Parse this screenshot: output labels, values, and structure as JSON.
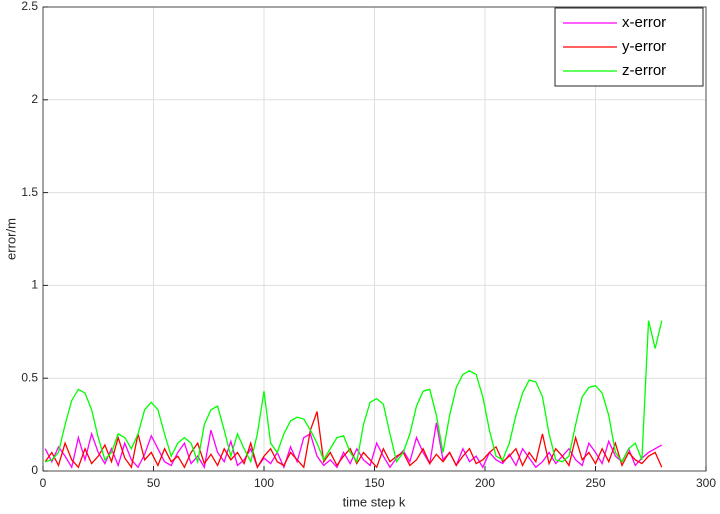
{
  "chart_data": {
    "type": "line",
    "x_label": "time step k",
    "y_label": "error/m",
    "x": [
      1,
      4,
      7,
      10,
      13,
      16,
      19,
      22,
      25,
      28,
      31,
      34,
      37,
      40,
      43,
      46,
      49,
      52,
      55,
      58,
      61,
      64,
      67,
      70,
      73,
      76,
      79,
      82,
      85,
      88,
      91,
      94,
      97,
      100,
      103,
      106,
      109,
      112,
      115,
      118,
      121,
      124,
      127,
      130,
      133,
      136,
      139,
      142,
      145,
      148,
      151,
      154,
      157,
      160,
      163,
      166,
      169,
      172,
      175,
      178,
      181,
      184,
      187,
      190,
      193,
      196,
      199,
      202,
      205,
      208,
      211,
      214,
      217,
      220,
      223,
      226,
      229,
      232,
      235,
      238,
      241,
      244,
      247,
      250,
      253,
      256,
      259,
      262,
      265,
      268,
      271,
      274,
      277,
      280
    ],
    "series": [
      {
        "name": "x-error",
        "color": "#ff00ff",
        "values": [
          0.12,
          0.05,
          0.13,
          0.08,
          0.02,
          0.18,
          0.06,
          0.2,
          0.1,
          0.04,
          0.12,
          0.03,
          0.15,
          0.06,
          0.02,
          0.09,
          0.19,
          0.12,
          0.05,
          0.03,
          0.1,
          0.15,
          0.04,
          0.08,
          0.02,
          0.22,
          0.1,
          0.05,
          0.16,
          0.03,
          0.06,
          0.12,
          0.02,
          0.07,
          0.04,
          0.1,
          0.02,
          0.13,
          0.05,
          0.18,
          0.2,
          0.08,
          0.03,
          0.06,
          0.02,
          0.1,
          0.04,
          0.12,
          0.06,
          0.03,
          0.15,
          0.08,
          0.02,
          0.07,
          0.11,
          0.05,
          0.18,
          0.1,
          0.04,
          0.26,
          0.06,
          0.1,
          0.03,
          0.12,
          0.05,
          0.08,
          0.02,
          0.1,
          0.06,
          0.04,
          0.09,
          0.03,
          0.12,
          0.07,
          0.02,
          0.05,
          0.1,
          0.04,
          0.08,
          0.12,
          0.06,
          0.03,
          0.15,
          0.1,
          0.04,
          0.16,
          0.08,
          0.05,
          0.12,
          0.03,
          0.07,
          0.1,
          0.12,
          0.14
        ]
      },
      {
        "name": "y-error",
        "color": "#ff0000",
        "values": [
          0.05,
          0.1,
          0.03,
          0.15,
          0.06,
          0.02,
          0.12,
          0.04,
          0.08,
          0.14,
          0.05,
          0.18,
          0.07,
          0.02,
          0.2,
          0.06,
          0.1,
          0.03,
          0.12,
          0.05,
          0.08,
          0.02,
          0.1,
          0.15,
          0.04,
          0.09,
          0.03,
          0.12,
          0.06,
          0.1,
          0.04,
          0.15,
          0.02,
          0.08,
          0.12,
          0.05,
          0.03,
          0.1,
          0.06,
          0.02,
          0.22,
          0.32,
          0.05,
          0.1,
          0.03,
          0.08,
          0.12,
          0.04,
          0.1,
          0.06,
          0.02,
          0.12,
          0.05,
          0.08,
          0.1,
          0.03,
          0.06,
          0.12,
          0.04,
          0.09,
          0.05,
          0.1,
          0.03,
          0.08,
          0.12,
          0.04,
          0.06,
          0.1,
          0.13,
          0.05,
          0.08,
          0.12,
          0.03,
          0.1,
          0.05,
          0.2,
          0.04,
          0.12,
          0.08,
          0.03,
          0.18,
          0.06,
          0.1,
          0.04,
          0.12,
          0.05,
          0.15,
          0.03,
          0.1,
          0.06,
          0.04,
          0.08,
          0.1,
          0.02
        ]
      },
      {
        "name": "z-error",
        "color": "#00ff00",
        "values": [
          0.05,
          0.06,
          0.1,
          0.25,
          0.38,
          0.44,
          0.42,
          0.33,
          0.18,
          0.06,
          0.1,
          0.2,
          0.18,
          0.12,
          0.2,
          0.33,
          0.37,
          0.33,
          0.2,
          0.08,
          0.15,
          0.18,
          0.15,
          0.05,
          0.25,
          0.33,
          0.35,
          0.22,
          0.08,
          0.2,
          0.12,
          0.05,
          0.2,
          0.43,
          0.15,
          0.1,
          0.2,
          0.27,
          0.29,
          0.28,
          0.22,
          0.15,
          0.06,
          0.12,
          0.18,
          0.19,
          0.1,
          0.05,
          0.25,
          0.37,
          0.39,
          0.36,
          0.2,
          0.05,
          0.1,
          0.2,
          0.35,
          0.43,
          0.44,
          0.3,
          0.1,
          0.3,
          0.45,
          0.52,
          0.54,
          0.52,
          0.4,
          0.22,
          0.08,
          0.06,
          0.15,
          0.3,
          0.42,
          0.49,
          0.48,
          0.4,
          0.2,
          0.06,
          0.05,
          0.08,
          0.25,
          0.4,
          0.45,
          0.46,
          0.42,
          0.3,
          0.1,
          0.05,
          0.12,
          0.15,
          0.06,
          0.81,
          0.66,
          0.81
        ]
      }
    ],
    "xlim": [
      0,
      300
    ],
    "xticks": [
      0,
      50,
      100,
      150,
      200,
      250,
      300
    ],
    "ylim": [
      0,
      2.5
    ],
    "yticks": [
      0,
      0.5,
      1,
      1.5,
      2,
      2.5
    ],
    "grid": true,
    "legend": "northeast"
  }
}
